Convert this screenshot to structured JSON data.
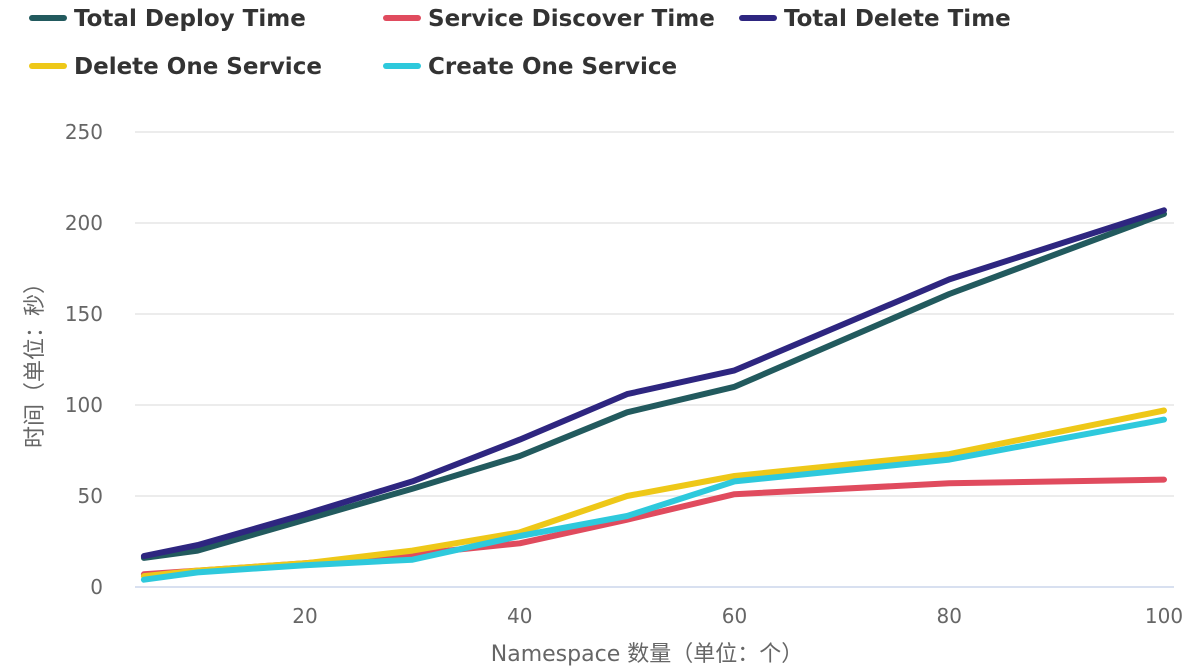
{
  "chart_data": {
    "type": "line",
    "title": "",
    "xlabel": "Namespace 数量（单位：个）",
    "ylabel": "时间（单位：秒）",
    "xlim": [
      5,
      101
    ],
    "ylim": [
      0,
      250
    ],
    "x_ticks": [
      20,
      40,
      60,
      80,
      100
    ],
    "y_ticks": [
      0,
      50,
      100,
      150,
      200,
      250
    ],
    "x_tick_labels": [
      "20",
      "40",
      "60",
      "80",
      "100"
    ],
    "y_tick_labels": [
      "0",
      "50",
      "100",
      "150",
      "200",
      "250"
    ],
    "grid": true,
    "legend_position": "top-left",
    "x": [
      5,
      10,
      20,
      30,
      40,
      50,
      60,
      80,
      100
    ],
    "series": [
      {
        "name": "Total Deploy Time",
        "color": "#225a5e",
        "values": [
          16,
          20,
          37,
          54,
          72,
          96,
          110,
          161,
          205
        ]
      },
      {
        "name": "Service Discover Time",
        "color": "#e04b5e",
        "values": [
          7,
          9,
          13,
          18,
          24,
          37,
          51,
          57,
          59
        ]
      },
      {
        "name": "Total Delete Time",
        "color": "#2e2680",
        "values": [
          17,
          23,
          40,
          58,
          81,
          106,
          119,
          169,
          207
        ]
      },
      {
        "name": "Delete One Service",
        "color": "#eec818",
        "values": [
          6,
          9,
          13,
          20,
          30,
          50,
          61,
          73,
          97
        ]
      },
      {
        "name": "Create One Service",
        "color": "#2ec9dc",
        "values": [
          4,
          8,
          12,
          15,
          28,
          39,
          58,
          70,
          92
        ]
      }
    ]
  }
}
